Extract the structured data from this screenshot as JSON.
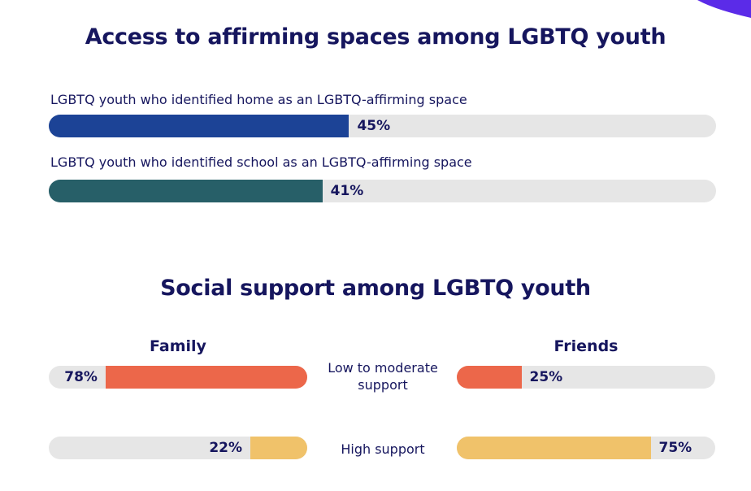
{
  "colors": {
    "navy": "#16165e",
    "home": "#1c4396",
    "school": "#275f68",
    "low": "#ec674a",
    "high": "#f0c26a",
    "track": "#e6e6e6",
    "accent": "#5b2be8"
  },
  "section1": {
    "title": "Access to affirming spaces among LGBTQ youth",
    "bars": [
      {
        "label": "LGBTQ youth who identified home as an LGBTQ-affirming space",
        "value": 45,
        "text": "45%"
      },
      {
        "label": "LGBTQ youth who identified school as an LGBTQ-affirming space",
        "value": 41,
        "text": "41%"
      }
    ]
  },
  "section2": {
    "title": "Social support among LGBTQ youth",
    "family_label": "Family",
    "friends_label": "Friends",
    "categories": [
      "Low to moderate support",
      "High support"
    ],
    "family": [
      {
        "value": 78,
        "text": "78%"
      },
      {
        "value": 22,
        "text": "22%"
      }
    ],
    "friends": [
      {
        "value": 25,
        "text": "25%"
      },
      {
        "value": 75,
        "text": "75%"
      }
    ]
  },
  "chart_data": [
    {
      "type": "bar",
      "title": "Access to affirming spaces among LGBTQ youth",
      "categories": [
        "LGBTQ youth who identified home as an LGBTQ-affirming space",
        "LGBTQ youth who identified school as an LGBTQ-affirming space"
      ],
      "values": [
        45,
        41
      ],
      "ylim": [
        0,
        100
      ]
    },
    {
      "type": "bar",
      "title": "Social support among LGBTQ youth",
      "categories": [
        "Low to moderate support",
        "High support"
      ],
      "series": [
        {
          "name": "Family",
          "values": [
            78,
            22
          ]
        },
        {
          "name": "Friends",
          "values": [
            25,
            75
          ]
        }
      ],
      "ylim": [
        0,
        100
      ]
    }
  ]
}
